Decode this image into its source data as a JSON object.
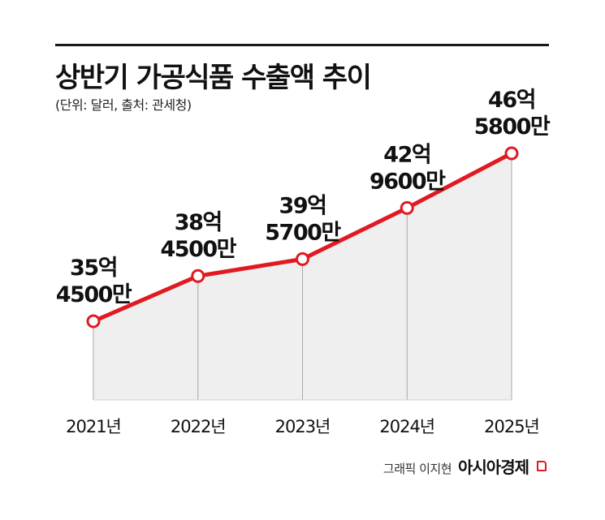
{
  "chart_data": {
    "type": "area",
    "title": "상반기 가공식품 수출액 추이",
    "subtitle": "(단위: 달러, 출처: 관세청)",
    "categories": [
      "2021년",
      "2022년",
      "2023년",
      "2024년",
      "2025년"
    ],
    "values": [
      3545000000,
      3845000000,
      3957000000,
      4296000000,
      4658000000
    ],
    "data_labels": [
      [
        "35억",
        "4500만"
      ],
      [
        "38억",
        "4500만"
      ],
      [
        "39억",
        "5700만"
      ],
      [
        "42억",
        "9600만"
      ],
      [
        "46억",
        "5800만"
      ]
    ],
    "xlabel": "",
    "ylabel": "",
    "grid": false,
    "legend": "none",
    "colors": {
      "line": "#e01a22",
      "area": "#efefef",
      "marker_fill": "#ffffff",
      "drop_line": "#a8a8a8"
    }
  },
  "credit": {
    "artist": "그래픽 이지현",
    "brand": "아시아경제",
    "brand_mark_icon": "brand-corner-mark-icon"
  }
}
